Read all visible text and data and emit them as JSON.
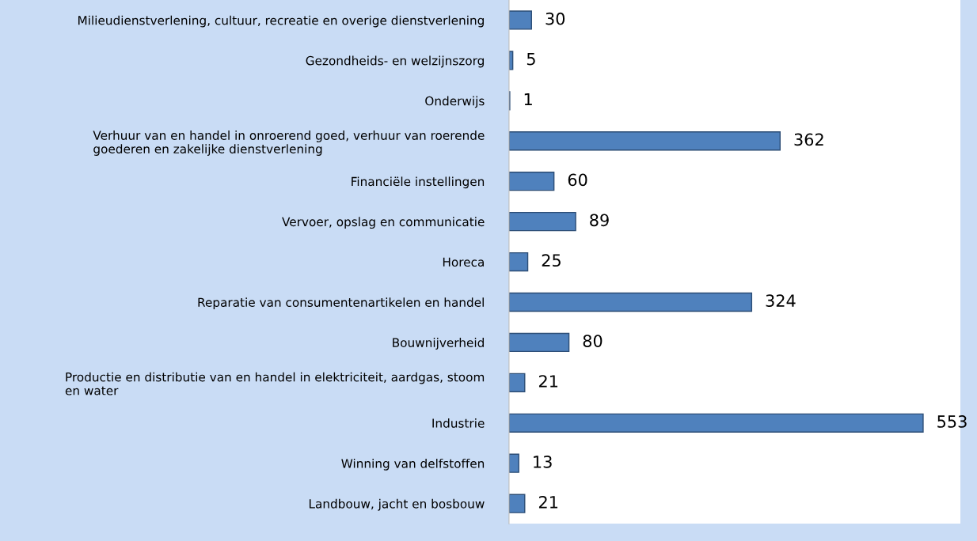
{
  "chart_data": {
    "type": "bar",
    "orientation": "horizontal",
    "categories": [
      "Milieudienstverlening, cultuur, recreatie en overige dienstverlening",
      "Gezondheids- en welzijnszorg",
      "Onderwijs",
      "Verhuur van en handel in onroerend goed, verhuur van roerende\ngoederen en zakelijke dienstverlening",
      "Financiële instellingen",
      "Vervoer, opslag en communicatie",
      "Horeca",
      "Reparatie van consumentenartikelen en handel",
      "Bouwnijverheid",
      "Productie en distributie van en handel in elektriciteit, aardgas, stoom\nen water",
      "Industrie",
      "Winning van delfstoffen",
      "Landbouw, jacht en bosbouw"
    ],
    "values": [
      30,
      5,
      1,
      362,
      60,
      89,
      25,
      324,
      80,
      21,
      553,
      13,
      21
    ],
    "color": "#4f81bd",
    "data_labels": true,
    "grid": false,
    "legend": false
  }
}
